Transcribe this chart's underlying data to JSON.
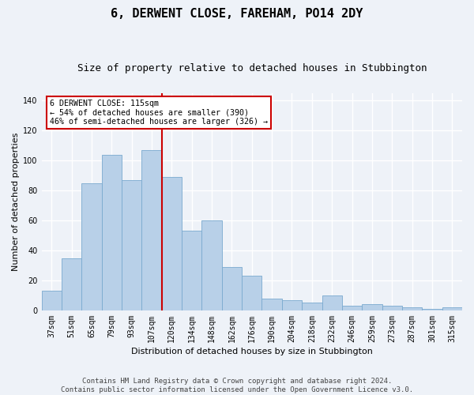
{
  "title": "6, DERWENT CLOSE, FAREHAM, PO14 2DY",
  "subtitle": "Size of property relative to detached houses in Stubbington",
  "xlabel": "Distribution of detached houses by size in Stubbington",
  "ylabel": "Number of detached properties",
  "categories": [
    "37sqm",
    "51sqm",
    "65sqm",
    "79sqm",
    "93sqm",
    "107sqm",
    "120sqm",
    "134sqm",
    "148sqm",
    "162sqm",
    "176sqm",
    "190sqm",
    "204sqm",
    "218sqm",
    "232sqm",
    "246sqm",
    "259sqm",
    "273sqm",
    "287sqm",
    "301sqm",
    "315sqm"
  ],
  "values": [
    13,
    35,
    85,
    104,
    87,
    107,
    89,
    53,
    60,
    29,
    23,
    8,
    7,
    5,
    10,
    3,
    4,
    3,
    2,
    1,
    2
  ],
  "bar_color": "#b8d0e8",
  "bar_edge_color": "#7aaacf",
  "vline_x": 6.0,
  "vline_color": "#cc0000",
  "annotation_text": "6 DERWENT CLOSE: 115sqm\n← 54% of detached houses are smaller (390)\n46% of semi-detached houses are larger (326) →",
  "annotation_box_color": "#ffffff",
  "annotation_box_edge": "#cc0000",
  "ylim": [
    0,
    145
  ],
  "yticks": [
    0,
    20,
    40,
    60,
    80,
    100,
    120,
    140
  ],
  "footer": "Contains HM Land Registry data © Crown copyright and database right 2024.\nContains public sector information licensed under the Open Government Licence v3.0.",
  "background_color": "#eef2f8",
  "plot_bg_color": "#eef2f8",
  "grid_color": "#ffffff",
  "title_fontsize": 11,
  "subtitle_fontsize": 9,
  "label_fontsize": 8,
  "tick_fontsize": 7,
  "footer_fontsize": 6.5
}
